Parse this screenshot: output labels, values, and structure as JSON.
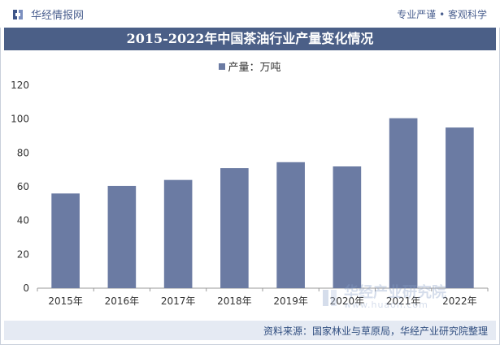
{
  "header": {
    "brand": "华经情报网",
    "slogan": "专业严谨 • 客观科学"
  },
  "watermark": {
    "text": "华经产业研究院",
    "url": "www.huaon.com"
  },
  "footer": {
    "source": "资料来源：国家林业与草原局，华经产业研究院整理"
  },
  "colors": {
    "bar": "#6b7ba3",
    "title_bg": "#4b5f87",
    "footer_bg": "#e5eaf3"
  },
  "chart_data": {
    "type": "bar",
    "title": "2015-2022年中国茶油行业产量变化情况",
    "legend": [
      "产量：万吨"
    ],
    "legend_position": "top",
    "categories": [
      "2015年",
      "2016年",
      "2017年",
      "2018年",
      "2019年",
      "2020年",
      "2021年",
      "2022年"
    ],
    "series": [
      {
        "name": "产量：万吨",
        "values": [
          56,
          60.5,
          64,
          71,
          74.5,
          72,
          100.5,
          95
        ]
      }
    ],
    "ylim": [
      0,
      120
    ],
    "yticks": [
      0,
      20,
      40,
      60,
      80,
      100,
      120
    ],
    "grid": false
  }
}
